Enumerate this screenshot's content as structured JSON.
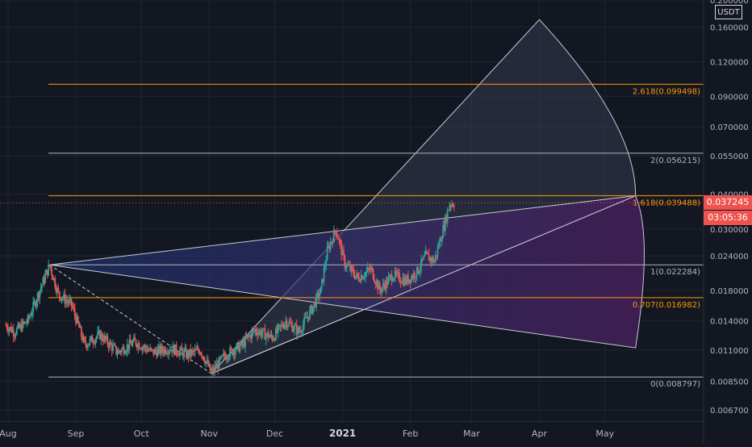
{
  "currency_label": "USDT",
  "current_price": "0.037245",
  "countdown": "03:05:36",
  "colors": {
    "background": "#131722",
    "grid": "#1f2430",
    "axis_text": "#b2b5be",
    "up": "#26a69a",
    "down": "#ef5350",
    "fib_orange": "#ff9800",
    "fib_gray": "#b2b5be",
    "fan_upper": "#3a4257",
    "fan_lower_blue": "#1f3a7a",
    "fan_lower_purple": "#4a1f5c",
    "price_badge": "#ef5350"
  },
  "fib_levels": [
    {
      "label": "2.618(0.099498)",
      "value": 0.099498,
      "color": "#ff9800"
    },
    {
      "label": "2(0.056215)",
      "value": 0.056215,
      "color": "#b2b5be"
    },
    {
      "label": "1.618(0.039488)",
      "value": 0.039488,
      "color": "#ff9800"
    },
    {
      "label": "1(0.022284)",
      "value": 0.022284,
      "color": "#b2b5be"
    },
    {
      "label": "0.707(0.016982)",
      "value": 0.016982,
      "color": "#ff9800"
    },
    {
      "label": "0(0.008797)",
      "value": 0.008797,
      "color": "#b2b5be"
    }
  ],
  "chart_data": {
    "type": "candlestick",
    "symbol_quote": "USDT",
    "y_scale": "log",
    "ylim": [
      0.0061,
      0.2
    ],
    "y_ticks": [
      "0.006700",
      "0.008500",
      "0.011000",
      "0.014000",
      "0.018000",
      "0.024000",
      "0.030000",
      "0.040000",
      "0.055000",
      "0.070000",
      "0.090000",
      "0.120000",
      "0.160000",
      "0.200000"
    ],
    "x_ticks": [
      "Aug",
      "Sep",
      "Oct",
      "Nov",
      "Dec",
      "2021",
      "Feb",
      "Mar",
      "Apr",
      "May"
    ],
    "pivot_points": [
      {
        "date": "2020-07-31",
        "close": 0.0135
      },
      {
        "date": "2020-08-04",
        "close": 0.0128
      },
      {
        "date": "2020-08-10",
        "close": 0.014
      },
      {
        "date": "2020-08-16",
        "close": 0.0185
      },
      {
        "date": "2020-08-20",
        "close": 0.0222
      },
      {
        "date": "2020-08-24",
        "close": 0.0175
      },
      {
        "date": "2020-08-30",
        "close": 0.016
      },
      {
        "date": "2020-09-05",
        "close": 0.0115
      },
      {
        "date": "2020-09-12",
        "close": 0.0125
      },
      {
        "date": "2020-09-20",
        "close": 0.0108
      },
      {
        "date": "2020-09-28",
        "close": 0.0118
      },
      {
        "date": "2020-10-06",
        "close": 0.0108
      },
      {
        "date": "2020-10-14",
        "close": 0.0112
      },
      {
        "date": "2020-10-22",
        "close": 0.0106
      },
      {
        "date": "2020-10-28",
        "close": 0.011
      },
      {
        "date": "2020-11-02",
        "close": 0.0091
      },
      {
        "date": "2020-11-08",
        "close": 0.0105
      },
      {
        "date": "2020-11-16",
        "close": 0.0115
      },
      {
        "date": "2020-11-22",
        "close": 0.013
      },
      {
        "date": "2020-11-30",
        "close": 0.0122
      },
      {
        "date": "2020-12-06",
        "close": 0.014
      },
      {
        "date": "2020-12-12",
        "close": 0.0128
      },
      {
        "date": "2020-12-18",
        "close": 0.0155
      },
      {
        "date": "2020-12-22",
        "close": 0.018
      },
      {
        "date": "2020-12-25",
        "close": 0.025
      },
      {
        "date": "2020-12-29",
        "close": 0.03
      },
      {
        "date": "2021-01-02",
        "close": 0.0225
      },
      {
        "date": "2021-01-08",
        "close": 0.02
      },
      {
        "date": "2021-01-14",
        "close": 0.0215
      },
      {
        "date": "2021-01-18",
        "close": 0.018
      },
      {
        "date": "2021-01-24",
        "close": 0.0205
      },
      {
        "date": "2021-01-30",
        "close": 0.0195
      },
      {
        "date": "2021-02-04",
        "close": 0.021
      },
      {
        "date": "2021-02-08",
        "close": 0.024
      },
      {
        "date": "2021-02-12",
        "close": 0.023
      },
      {
        "date": "2021-02-16",
        "close": 0.03
      },
      {
        "date": "2021-02-19",
        "close": 0.037
      },
      {
        "date": "2021-02-21",
        "close": 0.0372
      }
    ]
  }
}
